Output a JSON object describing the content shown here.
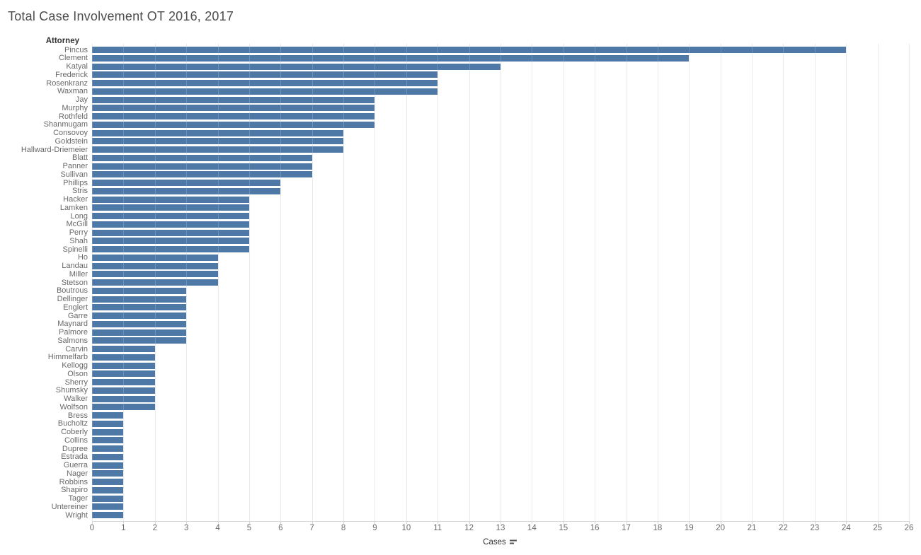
{
  "title": "Total Case Involvement OT 2016, 2017",
  "columns": {
    "row_header": "Attorney"
  },
  "axis": {
    "label": "Cases",
    "min": 0,
    "max": 26,
    "tick_step": 1,
    "ticks": [
      0,
      1,
      2,
      3,
      4,
      5,
      6,
      7,
      8,
      9,
      10,
      11,
      12,
      13,
      14,
      15,
      16,
      17,
      18,
      19,
      20,
      21,
      22,
      23,
      24,
      25,
      26
    ],
    "sort_indicator": "descending"
  },
  "icons": {
    "sort": "sort-descending-icon"
  },
  "colors": {
    "bar": "#4e79a7",
    "gridline": "#e7e7e7",
    "axis_line": "#d6d6d6",
    "title_text": "#4d4d4d",
    "label_text": "#696969",
    "header_text": "#333333",
    "tick_text": "#6b6b6b",
    "axis_title_text": "#333333"
  },
  "chart_data": {
    "type": "bar",
    "orientation": "horizontal",
    "title": "Total Case Involvement OT 2016, 2017",
    "xlabel": "Cases",
    "ylabel": "Attorney",
    "xlim": [
      0,
      26
    ],
    "grid": true,
    "sort": "descending by value",
    "categories": [
      "Pincus",
      "Clement",
      "Katyal",
      "Frederick",
      "Rosenkranz",
      "Waxman",
      "Jay",
      "Murphy",
      "Rothfeld",
      "Shanmugam",
      "Consovoy",
      "Goldstein",
      "Hallward-Driemeier",
      "Blatt",
      "Panner",
      "Sullivan",
      "Phillips",
      "Stris",
      "Hacker",
      "Lamken",
      "Long",
      "McGill",
      "Perry",
      "Shah",
      "Spinelli",
      "Ho",
      "Landau",
      "Miller",
      "Stetson",
      "Boutrous",
      "Dellinger",
      "Englert",
      "Garre",
      "Maynard",
      "Palmore",
      "Salmons",
      "Carvin",
      "Himmelfarb",
      "Kellogg",
      "Olson",
      "Sherry",
      "Shumsky",
      "Walker",
      "Wolfson",
      "Bress",
      "Bucholtz",
      "Coberly",
      "Collins",
      "Dupree",
      "Estrada",
      "Guerra",
      "Nager",
      "Robbins",
      "Shapiro",
      "Tager",
      "Untereiner",
      "Wright"
    ],
    "values": [
      24,
      19,
      13,
      11,
      11,
      11,
      9,
      9,
      9,
      9,
      8,
      8,
      8,
      7,
      7,
      7,
      6,
      6,
      5,
      5,
      5,
      5,
      5,
      5,
      5,
      4,
      4,
      4,
      4,
      3,
      3,
      3,
      3,
      3,
      3,
      3,
      2,
      2,
      2,
      2,
      2,
      2,
      2,
      2,
      1,
      1,
      1,
      1,
      1,
      1,
      1,
      1,
      1,
      1,
      1,
      1,
      1
    ]
  }
}
